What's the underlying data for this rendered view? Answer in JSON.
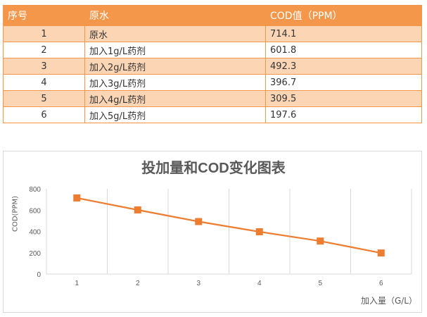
{
  "table": {
    "headers": [
      "序号",
      "原水",
      "COD值（PPM）"
    ],
    "rows": [
      {
        "idx": "1",
        "label": "原水",
        "value": "714.1"
      },
      {
        "idx": "2",
        "label": "加入1g/L药剂",
        "value": "601.8"
      },
      {
        "idx": "3",
        "label": "加入2g/L药剂",
        "value": "492.3"
      },
      {
        "idx": "4",
        "label": "加入3g/L药剂",
        "value": "396.7"
      },
      {
        "idx": "5",
        "label": "加入4g/L药剂",
        "value": "309.5"
      },
      {
        "idx": "6",
        "label": "加入5g/L药剂",
        "value": "197.6"
      }
    ]
  },
  "chart": {
    "title": "投加量和COD变化图表",
    "ylabel": "COD(PPM)",
    "xlabel": "加入量（G/L）"
  },
  "colors": {
    "header": "#f5974b",
    "row_odd": "#fcd5b4",
    "line": "#ed7d31"
  },
  "chart_data": {
    "type": "line",
    "title": "投加量和COD变化图表",
    "xlabel": "加入量（G/L）",
    "ylabel": "COD(PPM)",
    "categories": [
      "1",
      "2",
      "3",
      "4",
      "5",
      "6"
    ],
    "series": [
      {
        "name": "COD值（PPM）",
        "values": [
          714.1,
          601.8,
          492.3,
          396.7,
          309.5,
          197.6
        ]
      }
    ],
    "ylim": [
      0,
      800
    ],
    "yticks": [
      0,
      200,
      400,
      600,
      800
    ],
    "grid": "vertical",
    "legend": "none"
  }
}
